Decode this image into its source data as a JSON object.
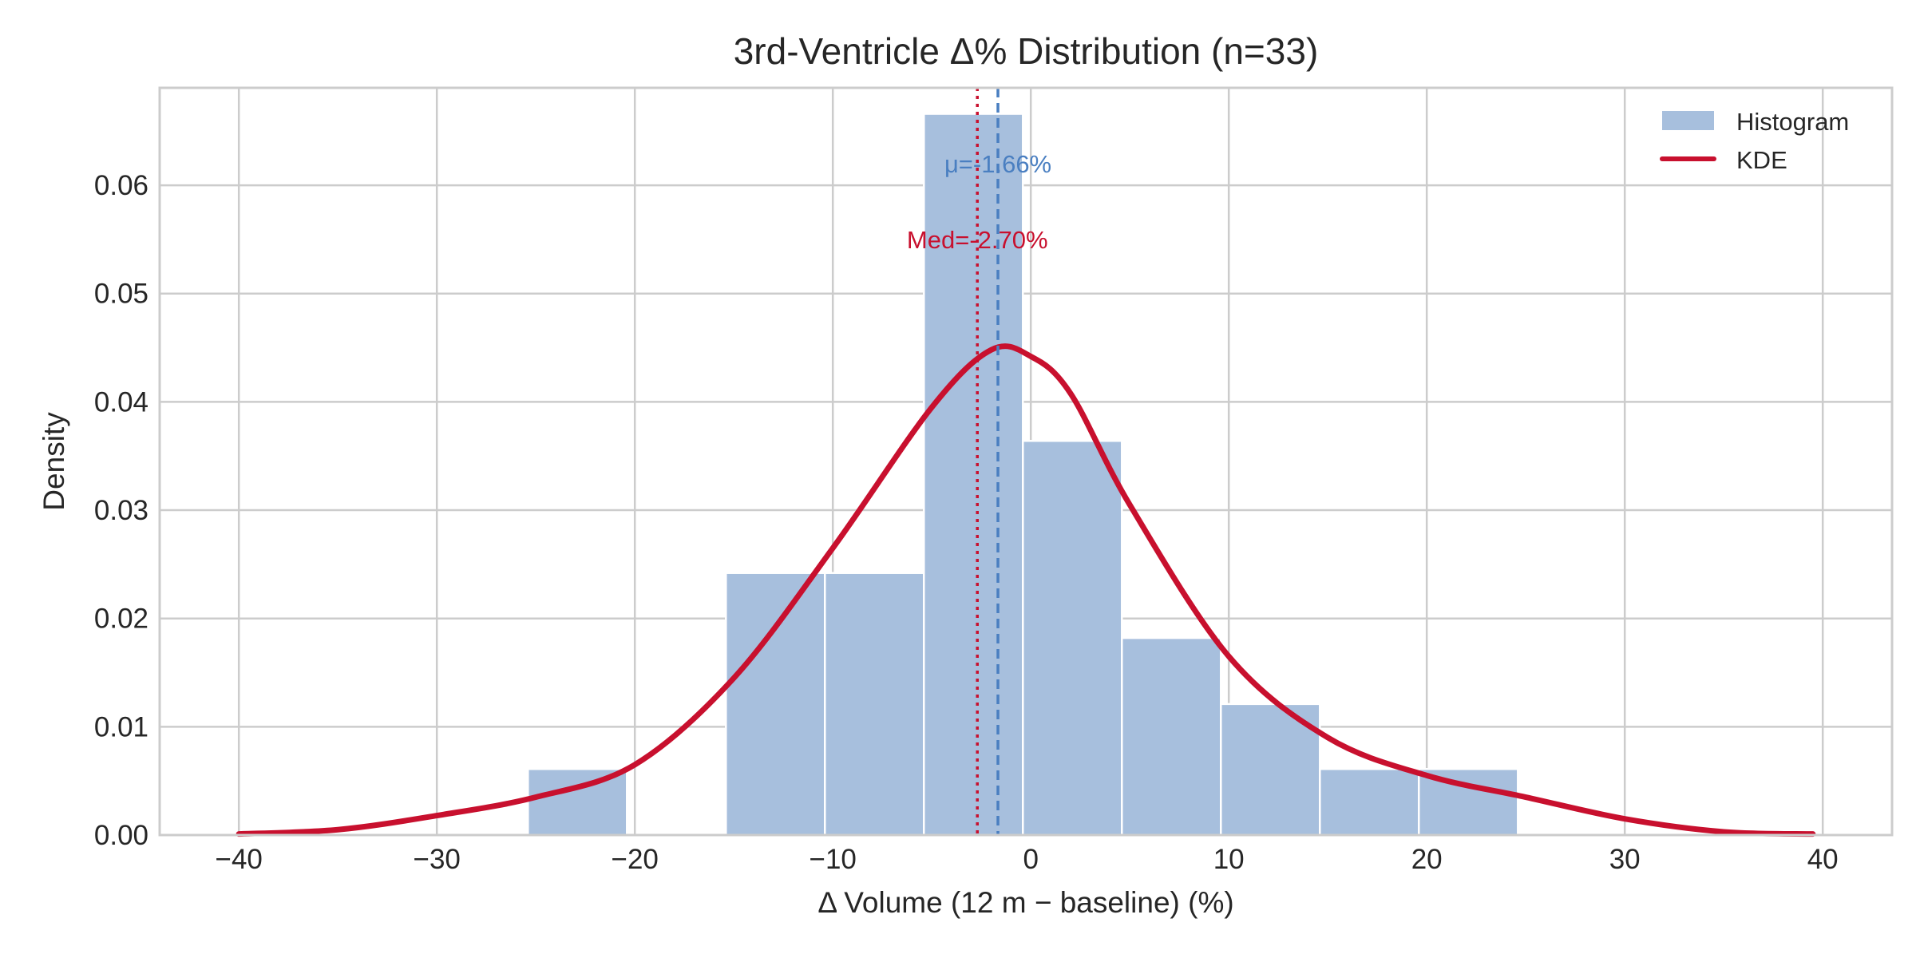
{
  "chart_data": {
    "type": "bar",
    "title": "3rd-Ventricle  Δ% Distribution  (n=33)",
    "xlabel": "Δ Volume (12 m − baseline) (%)",
    "ylabel": "Density",
    "xlim": [
      -44,
      43.5
    ],
    "ylim": [
      0,
      0.069
    ],
    "grid": true,
    "legend_position": "top-right",
    "x_ticks": [
      {
        "value": -40,
        "label": "−40"
      },
      {
        "value": -30,
        "label": "−30"
      },
      {
        "value": -20,
        "label": "−20"
      },
      {
        "value": -10,
        "label": "−10"
      },
      {
        "value": 0,
        "label": "0"
      },
      {
        "value": 10,
        "label": "10"
      },
      {
        "value": 20,
        "label": "20"
      },
      {
        "value": 30,
        "label": "30"
      },
      {
        "value": 40,
        "label": "40"
      }
    ],
    "y_ticks": [
      {
        "value": 0,
        "label": "0.00"
      },
      {
        "value": 0.01,
        "label": "0.01"
      },
      {
        "value": 0.02,
        "label": "0.02"
      },
      {
        "value": 0.03,
        "label": "0.03"
      },
      {
        "value": 0.04,
        "label": "0.04"
      },
      {
        "value": 0.05,
        "label": "0.05"
      },
      {
        "value": 0.06,
        "label": "0.06"
      }
    ],
    "histogram": {
      "name": "Histogram",
      "color": "#a7bfdd",
      "bins": [
        {
          "x0": -25.4,
          "x1": -20.4,
          "density": 0.0061
        },
        {
          "x0": -15.4,
          "x1": -10.4,
          "density": 0.0242
        },
        {
          "x0": -10.4,
          "x1": -5.4,
          "density": 0.0242
        },
        {
          "x0": -5.4,
          "x1": -0.4,
          "density": 0.0666
        },
        {
          "x0": -0.4,
          "x1": 4.6,
          "density": 0.0364
        },
        {
          "x0": 4.6,
          "x1": 9.6,
          "density": 0.0182
        },
        {
          "x0": 9.6,
          "x1": 14.6,
          "density": 0.0121
        },
        {
          "x0": 14.6,
          "x1": 19.6,
          "density": 0.0061
        },
        {
          "x0": 19.6,
          "x1": 24.6,
          "density": 0.0061
        }
      ]
    },
    "kde": {
      "name": "KDE",
      "color": "#c8102e",
      "x": [
        -40,
        -35,
        -30,
        -25,
        -20,
        -15,
        -10,
        -5,
        -2,
        0,
        2,
        5,
        10,
        15,
        20,
        25,
        30,
        35,
        39.5
      ],
      "y": [
        0.0001,
        0.0005,
        0.0018,
        0.0035,
        0.0065,
        0.0145,
        0.0265,
        0.0395,
        0.0448,
        0.0442,
        0.0408,
        0.0305,
        0.0165,
        0.009,
        0.0055,
        0.0035,
        0.0015,
        0.0003,
        0.0001
      ]
    },
    "mean": {
      "value": -1.66,
      "label": "μ=-1.66%",
      "color": "#4a7fc1"
    },
    "median": {
      "value": -2.7,
      "label": "Med=-2.70%",
      "color": "#c8102e"
    }
  }
}
